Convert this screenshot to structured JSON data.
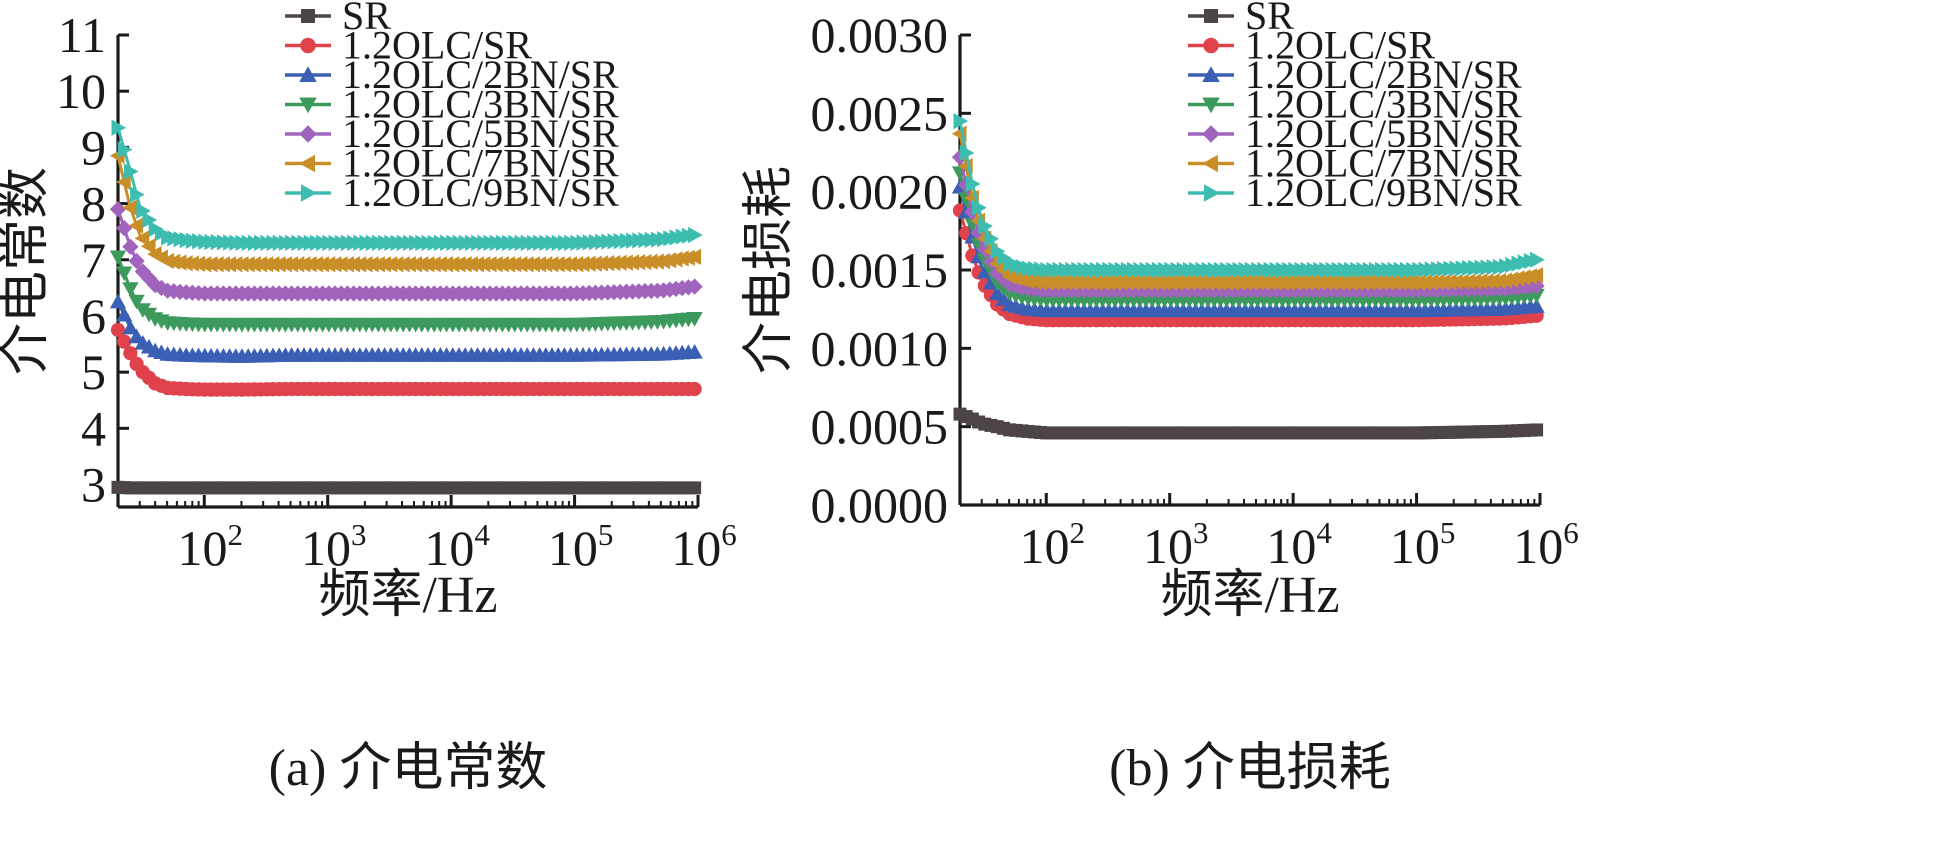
{
  "chart_data": [
    {
      "type": "line",
      "panel": "a",
      "caption": "(a) 介电常数",
      "xlabel": "频率/Hz",
      "ylabel": "介电常数",
      "xscale": "log",
      "xlim": [
        20,
        1000000
      ],
      "ylim": [
        2.6,
        11
      ],
      "x_ticks": [
        100,
        1000,
        10000,
        100000,
        1000000
      ],
      "x_tick_labels": [
        {
          "base": "10",
          "exp": "2"
        },
        {
          "base": "10",
          "exp": "3"
        },
        {
          "base": "10",
          "exp": "4"
        },
        {
          "base": "10",
          "exp": "5"
        },
        {
          "base": "10",
          "exp": "6"
        }
      ],
      "y_ticks": [
        3,
        4,
        5,
        6,
        7,
        8,
        9,
        10,
        11
      ],
      "y_tick_labels": [
        "3",
        "4",
        "5",
        "6",
        "7",
        "8",
        "9",
        "10",
        "11"
      ],
      "legend_position": "top-right",
      "x": [
        20,
        25,
        30,
        40,
        50,
        70,
        100,
        200,
        500,
        1000,
        5000,
        10000,
        50000,
        100000,
        500000,
        1000000
      ],
      "series": [
        {
          "name": "SR",
          "color": "#4d4545",
          "marker": "square",
          "values": [
            2.95,
            2.94,
            2.94,
            2.94,
            2.94,
            2.94,
            2.94,
            2.94,
            2.94,
            2.94,
            2.94,
            2.94,
            2.94,
            2.94,
            2.94,
            2.94
          ]
        },
        {
          "name": "1.2OLC/SR",
          "color": "#e0424c",
          "marker": "circle",
          "values": [
            5.75,
            5.35,
            5.05,
            4.8,
            4.72,
            4.7,
            4.69,
            4.69,
            4.7,
            4.7,
            4.7,
            4.7,
            4.7,
            4.7,
            4.7,
            4.7
          ]
        },
        {
          "name": "1.2OLC/2BN/SR",
          "color": "#3b5fb5",
          "marker": "triangle-up",
          "values": [
            6.25,
            5.8,
            5.55,
            5.38,
            5.32,
            5.3,
            5.29,
            5.28,
            5.3,
            5.3,
            5.3,
            5.3,
            5.3,
            5.3,
            5.32,
            5.36
          ]
        },
        {
          "name": "1.2OLC/3BN/SR",
          "color": "#3c9a5c",
          "marker": "triangle-down",
          "values": [
            7.05,
            6.5,
            6.15,
            5.95,
            5.88,
            5.86,
            5.85,
            5.85,
            5.85,
            5.85,
            5.85,
            5.85,
            5.85,
            5.85,
            5.9,
            5.96
          ]
        },
        {
          "name": "1.2OLC/5BN/SR",
          "color": "#a064bd",
          "marker": "diamond",
          "values": [
            7.9,
            7.25,
            6.85,
            6.55,
            6.45,
            6.42,
            6.4,
            6.4,
            6.4,
            6.4,
            6.4,
            6.4,
            6.4,
            6.4,
            6.45,
            6.53
          ]
        },
        {
          "name": "1.2OLC/7BN/SR",
          "color": "#c98e27",
          "marker": "triangle-left",
          "values": [
            8.85,
            7.95,
            7.45,
            7.1,
            6.98,
            6.94,
            6.92,
            6.92,
            6.92,
            6.92,
            6.92,
            6.92,
            6.92,
            6.92,
            6.97,
            7.06
          ]
        },
        {
          "name": "1.2OLC/9BN/SR",
          "color": "#3dbdb0",
          "marker": "triangle-right",
          "values": [
            9.35,
            8.6,
            7.95,
            7.55,
            7.4,
            7.35,
            7.32,
            7.3,
            7.3,
            7.3,
            7.3,
            7.3,
            7.3,
            7.3,
            7.36,
            7.45
          ]
        }
      ]
    },
    {
      "type": "line",
      "panel": "b",
      "caption": "(b) 介电损耗",
      "xlabel": "频率/Hz",
      "ylabel": "介电损耗",
      "xscale": "log",
      "xlim": [
        20,
        1000000
      ],
      "ylim": [
        0,
        0.003
      ],
      "x_ticks": [
        100,
        1000,
        10000,
        100000,
        1000000
      ],
      "x_tick_labels": [
        {
          "base": "10",
          "exp": "2"
        },
        {
          "base": "10",
          "exp": "3"
        },
        {
          "base": "10",
          "exp": "4"
        },
        {
          "base": "10",
          "exp": "5"
        },
        {
          "base": "10",
          "exp": "6"
        }
      ],
      "y_ticks": [
        0,
        0.0005,
        0.001,
        0.0015,
        0.002,
        0.0025,
        0.003
      ],
      "y_tick_labels": [
        "0.0000",
        "0.0005",
        "0.0010",
        "0.0015",
        "0.0020",
        "0.0025",
        "0.0030"
      ],
      "legend_position": "top-right",
      "x": [
        20,
        25,
        30,
        40,
        50,
        70,
        100,
        200,
        500,
        1000,
        5000,
        10000,
        50000,
        100000,
        500000,
        1000000
      ],
      "series": [
        {
          "name": "SR",
          "color": "#4d4545",
          "marker": "square",
          "values": [
            0.00058,
            0.00055,
            0.00052,
            0.0005,
            0.00048,
            0.00047,
            0.00046,
            0.00046,
            0.00046,
            0.00046,
            0.00046,
            0.00046,
            0.00046,
            0.00046,
            0.00047,
            0.00048
          ]
        },
        {
          "name": "1.2OLC/SR",
          "color": "#e0424c",
          "marker": "circle",
          "values": [
            0.00188,
            0.0016,
            0.00143,
            0.00128,
            0.00122,
            0.00119,
            0.00118,
            0.00118,
            0.00118,
            0.00118,
            0.00118,
            0.00118,
            0.00118,
            0.00118,
            0.00119,
            0.00121
          ]
        },
        {
          "name": "1.2OLC/2BN/SR",
          "color": "#3b5fb5",
          "marker": "triangle-up",
          "values": [
            0.00203,
            0.00172,
            0.00152,
            0.00135,
            0.00128,
            0.00125,
            0.00124,
            0.00124,
            0.00124,
            0.00124,
            0.00124,
            0.00124,
            0.00124,
            0.00124,
            0.00125,
            0.00127
          ]
        },
        {
          "name": "1.2OLC/3BN/SR",
          "color": "#3c9a5c",
          "marker": "triangle-down",
          "values": [
            0.00212,
            0.0018,
            0.0016,
            0.00142,
            0.00135,
            0.00132,
            0.00131,
            0.00131,
            0.00131,
            0.00131,
            0.00131,
            0.00131,
            0.00131,
            0.00131,
            0.00132,
            0.00134
          ]
        },
        {
          "name": "1.2OLC/5BN/SR",
          "color": "#a064bd",
          "marker": "diamond",
          "values": [
            0.00222,
            0.00188,
            0.00167,
            0.00148,
            0.00141,
            0.00138,
            0.00137,
            0.00137,
            0.00137,
            0.00137,
            0.00137,
            0.00137,
            0.00137,
            0.00137,
            0.00138,
            0.0014
          ]
        },
        {
          "name": "1.2OLC/7BN/SR",
          "color": "#c98e27",
          "marker": "triangle-left",
          "values": [
            0.00237,
            0.00197,
            0.00174,
            0.00154,
            0.00146,
            0.00143,
            0.00142,
            0.00142,
            0.00142,
            0.00142,
            0.00142,
            0.00142,
            0.00142,
            0.00142,
            0.00143,
            0.00147
          ]
        },
        {
          "name": "1.2OLC/9BN/SR",
          "color": "#3dbdb0",
          "marker": "triangle-right",
          "values": [
            0.00245,
            0.00206,
            0.00182,
            0.00162,
            0.00154,
            0.00151,
            0.0015,
            0.0015,
            0.0015,
            0.0015,
            0.0015,
            0.0015,
            0.0015,
            0.0015,
            0.00152,
            0.00157
          ]
        }
      ]
    }
  ]
}
